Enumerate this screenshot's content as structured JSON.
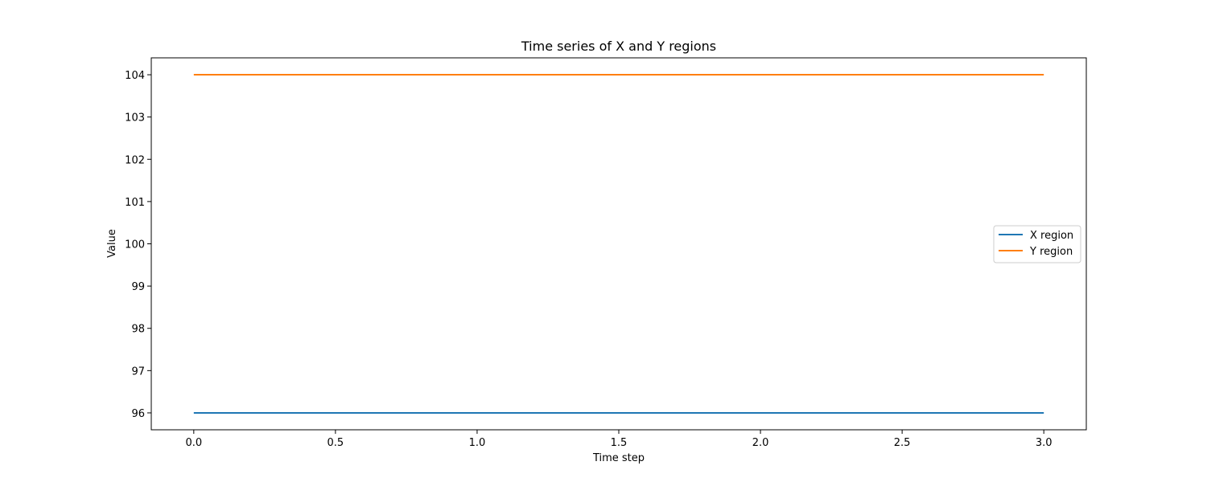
{
  "chart_data": {
    "type": "line",
    "title": "Time series of X and Y regions",
    "xlabel": "Time step",
    "ylabel": "Value",
    "x": [
      0,
      1,
      2,
      3
    ],
    "series": [
      {
        "name": "X region",
        "values": [
          96,
          96,
          96,
          96
        ],
        "color": "#1f77b4"
      },
      {
        "name": "Y region",
        "values": [
          104,
          104,
          104,
          104
        ],
        "color": "#ff7f0e"
      }
    ],
    "xlim": [
      -0.15,
      3.15
    ],
    "ylim": [
      95.6,
      104.4
    ],
    "xticks": [
      0.0,
      0.5,
      1.0,
      1.5,
      2.0,
      2.5,
      3.0
    ],
    "xtick_labels": [
      "0.0",
      "0.5",
      "1.0",
      "1.5",
      "2.0",
      "2.5",
      "3.0"
    ],
    "yticks": [
      96,
      97,
      98,
      99,
      100,
      101,
      102,
      103,
      104
    ],
    "ytick_labels": [
      "96",
      "97",
      "98",
      "99",
      "100",
      "101",
      "102",
      "103",
      "104"
    ],
    "grid": false,
    "legend": "center-right"
  }
}
